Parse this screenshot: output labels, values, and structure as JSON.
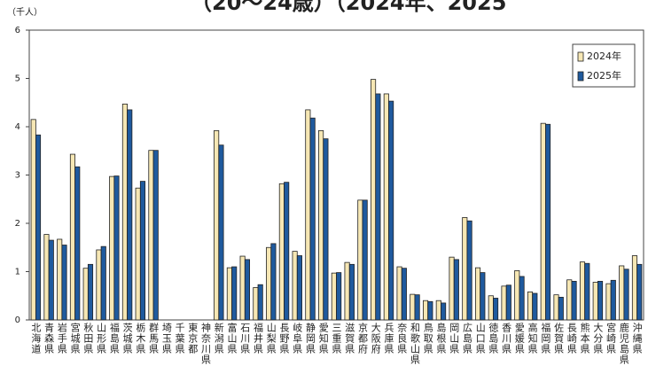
{
  "chart_data": {
    "type": "bar",
    "title": "（20～24歳）（2024年、2025",
    "y_unit": "（千人）",
    "categories": [
      "北海道",
      "青森県",
      "岩手県",
      "宮城県",
      "秋田県",
      "山形県",
      "福島県",
      "茨城県",
      "栃木県",
      "群馬県",
      "埼玉県",
      "千葉県",
      "東京都",
      "神奈川県",
      "新潟県",
      "富山県",
      "石川県",
      "福井県",
      "山梨県",
      "長野県",
      "岐阜県",
      "静岡県",
      "愛知県",
      "三重県",
      "滋賀県",
      "京都府",
      "大阪府",
      "兵庫県",
      "奈良県",
      "和歌山県",
      "鳥取県",
      "島根県",
      "岡山県",
      "広島県",
      "山口県",
      "徳島県",
      "香川県",
      "愛媛県",
      "高知県",
      "福岡県",
      "佐賀県",
      "長崎県",
      "熊本県",
      "大分県",
      "宮崎県",
      "鹿児島県",
      "沖縄県"
    ],
    "series": [
      {
        "name": "2024年",
        "color": "#f6e7b4",
        "values": [
          4.15,
          1.77,
          1.67,
          3.43,
          1.07,
          1.45,
          2.97,
          4.47,
          2.73,
          3.51,
          null,
          null,
          null,
          null,
          3.92,
          1.08,
          1.32,
          0.67,
          1.5,
          2.82,
          1.42,
          4.35,
          3.92,
          0.97,
          1.19,
          2.48,
          4.98,
          4.68,
          1.1,
          0.53,
          0.4,
          0.4,
          1.3,
          2.12,
          1.08,
          0.5,
          0.7,
          1.02,
          0.58,
          4.07,
          0.52,
          0.83,
          1.2,
          0.78,
          0.75,
          1.12,
          1.33
        ]
      },
      {
        "name": "2025年",
        "color": "#1f5a9e",
        "values": [
          3.83,
          1.65,
          1.55,
          3.17,
          1.15,
          1.52,
          2.98,
          4.35,
          2.87,
          3.51,
          null,
          null,
          null,
          null,
          3.62,
          1.1,
          1.25,
          0.73,
          1.58,
          2.85,
          1.33,
          4.18,
          3.75,
          0.98,
          1.15,
          2.48,
          4.68,
          4.53,
          1.07,
          0.52,
          0.38,
          0.35,
          1.25,
          2.05,
          0.98,
          0.45,
          0.72,
          0.9,
          0.55,
          4.05,
          0.47,
          0.8,
          1.17,
          0.8,
          0.82,
          1.05,
          1.15
        ]
      }
    ],
    "ylim": [
      0,
      6
    ],
    "yticks": [
      0,
      1,
      2,
      3,
      4,
      5,
      6
    ],
    "grid": false,
    "legend": "upper right"
  }
}
